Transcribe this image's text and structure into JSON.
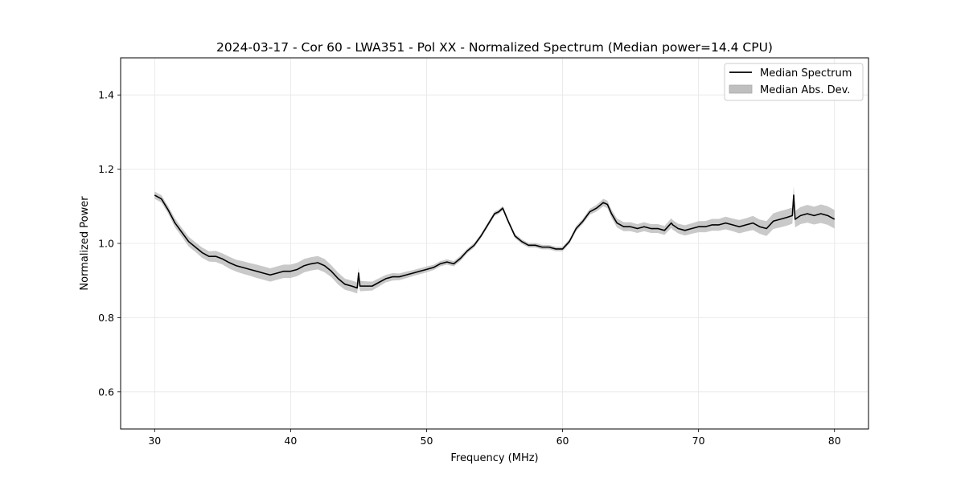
{
  "chart_data": {
    "type": "line",
    "title": "2024-03-17 - Cor 60 - LWA351 - Pol XX - Normalized Spectrum (Median power=14.4 CPU)",
    "xlabel": "Frequency (MHz)",
    "ylabel": "Normalized Power",
    "xlim": [
      27.5,
      82.5
    ],
    "ylim": [
      0.5,
      1.5
    ],
    "x_ticks": [
      30,
      40,
      50,
      60,
      70,
      80
    ],
    "y_ticks": [
      0.6,
      0.8,
      1.0,
      1.2,
      1.4
    ],
    "grid": true,
    "legend_position": "top-right",
    "colors": {
      "line": "#000000",
      "band": "#bfbfbf",
      "grid": "#e6e6e6"
    },
    "series": [
      {
        "name": "Median Spectrum",
        "x": [
          30.0,
          30.5,
          31.0,
          31.5,
          32.0,
          32.5,
          33.0,
          33.5,
          34.0,
          34.5,
          35.0,
          35.5,
          36.0,
          36.5,
          37.0,
          37.5,
          38.0,
          38.5,
          39.0,
          39.5,
          40.0,
          40.5,
          41.0,
          41.5,
          42.0,
          42.5,
          43.0,
          43.5,
          44.0,
          44.5,
          44.9,
          45.0,
          45.1,
          45.5,
          46.0,
          46.5,
          47.0,
          47.5,
          48.0,
          48.5,
          49.0,
          49.5,
          50.0,
          50.5,
          51.0,
          51.5,
          52.0,
          52.5,
          53.0,
          53.5,
          54.0,
          54.5,
          55.0,
          55.3,
          55.6,
          56.0,
          56.5,
          57.0,
          57.5,
          58.0,
          58.5,
          59.0,
          59.5,
          60.0,
          60.5,
          61.0,
          61.5,
          62.0,
          62.5,
          63.0,
          63.3,
          63.6,
          64.0,
          64.5,
          65.0,
          65.5,
          66.0,
          66.5,
          67.0,
          67.5,
          68.0,
          68.1,
          68.5,
          69.0,
          69.5,
          70.0,
          70.5,
          71.0,
          71.5,
          72.0,
          72.5,
          73.0,
          73.5,
          74.0,
          74.5,
          75.0,
          75.5,
          76.0,
          76.5,
          76.9,
          77.0,
          77.1,
          77.5,
          78.0,
          78.5,
          79.0,
          79.5,
          80.0
        ],
        "values": [
          1.13,
          1.12,
          1.09,
          1.055,
          1.03,
          1.005,
          0.99,
          0.975,
          0.965,
          0.965,
          0.958,
          0.948,
          0.94,
          0.935,
          0.93,
          0.925,
          0.92,
          0.915,
          0.92,
          0.925,
          0.925,
          0.93,
          0.94,
          0.945,
          0.948,
          0.94,
          0.925,
          0.905,
          0.89,
          0.885,
          0.88,
          0.92,
          0.885,
          0.885,
          0.885,
          0.895,
          0.905,
          0.91,
          0.91,
          0.915,
          0.92,
          0.925,
          0.93,
          0.935,
          0.945,
          0.95,
          0.945,
          0.96,
          0.98,
          0.995,
          1.02,
          1.05,
          1.08,
          1.085,
          1.095,
          1.06,
          1.02,
          1.005,
          0.995,
          0.995,
          0.99,
          0.99,
          0.985,
          0.985,
          1.005,
          1.04,
          1.06,
          1.085,
          1.095,
          1.11,
          1.105,
          1.08,
          1.055,
          1.045,
          1.045,
          1.04,
          1.045,
          1.04,
          1.04,
          1.035,
          1.055,
          1.05,
          1.04,
          1.035,
          1.04,
          1.045,
          1.045,
          1.05,
          1.05,
          1.055,
          1.05,
          1.045,
          1.05,
          1.055,
          1.045,
          1.04,
          1.06,
          1.065,
          1.07,
          1.075,
          1.13,
          1.065,
          1.075,
          1.08,
          1.075,
          1.08,
          1.075,
          1.065
        ]
      }
    ],
    "band": {
      "name": "Median Abs. Dev.",
      "half_width": [
        0.01,
        0.01,
        0.01,
        0.012,
        0.012,
        0.013,
        0.013,
        0.014,
        0.014,
        0.015,
        0.015,
        0.016,
        0.016,
        0.017,
        0.017,
        0.018,
        0.018,
        0.018,
        0.018,
        0.018,
        0.018,
        0.018,
        0.018,
        0.018,
        0.018,
        0.018,
        0.016,
        0.016,
        0.015,
        0.015,
        0.015,
        0.015,
        0.014,
        0.013,
        0.012,
        0.011,
        0.01,
        0.01,
        0.009,
        0.009,
        0.008,
        0.008,
        0.008,
        0.007,
        0.007,
        0.007,
        0.007,
        0.007,
        0.006,
        0.006,
        0.006,
        0.006,
        0.006,
        0.006,
        0.006,
        0.006,
        0.006,
        0.006,
        0.006,
        0.006,
        0.006,
        0.006,
        0.006,
        0.006,
        0.006,
        0.007,
        0.007,
        0.008,
        0.009,
        0.01,
        0.01,
        0.011,
        0.012,
        0.012,
        0.012,
        0.012,
        0.012,
        0.012,
        0.012,
        0.012,
        0.013,
        0.013,
        0.013,
        0.014,
        0.014,
        0.015,
        0.015,
        0.016,
        0.016,
        0.017,
        0.017,
        0.018,
        0.018,
        0.019,
        0.019,
        0.02,
        0.021,
        0.022,
        0.022,
        0.022,
        0.025,
        0.022,
        0.023,
        0.024,
        0.024,
        0.025,
        0.025,
        0.025
      ]
    }
  }
}
